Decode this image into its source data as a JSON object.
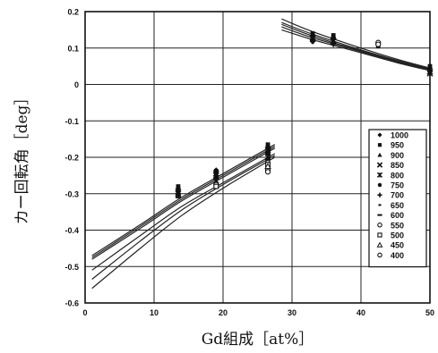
{
  "chart_data": {
    "type": "scatter",
    "xlabel": "Gd組成［at%］",
    "ylabel": "カー回転角［deg］",
    "xlim": [
      0,
      50
    ],
    "ylim": [
      -0.6,
      0.2
    ],
    "xticks": [
      "0",
      "10",
      "20",
      "30",
      "40",
      "50"
    ],
    "yticks": [
      "0.2",
      "0.1",
      "0",
      "-0.1",
      "-0.2",
      "-0.3",
      "-0.4",
      "-0.5",
      "-0.6"
    ],
    "grid": true,
    "legend_position": "right",
    "legend": [
      "1000",
      "950",
      "900",
      "850",
      "800",
      "750",
      "700",
      "650",
      "600",
      "550",
      "500",
      "450",
      "400"
    ],
    "series": [
      {
        "name": "1000",
        "marker": "diamond",
        "points": [
          [
            13.5,
            -0.285
          ],
          [
            19,
            -0.235
          ],
          [
            26.5,
            -0.17
          ],
          [
            33,
            0.135
          ],
          [
            36,
            0.13
          ],
          [
            42.5,
            0.11
          ],
          [
            50,
            0.045
          ]
        ]
      },
      {
        "name": "950",
        "marker": "square-filled",
        "points": [
          [
            13.5,
            -0.28
          ],
          [
            19,
            -0.238
          ],
          [
            26.5,
            -0.165
          ],
          [
            33,
            0.14
          ],
          [
            36,
            0.135
          ],
          [
            42.5,
            0.105
          ],
          [
            50,
            0.05
          ]
        ]
      },
      {
        "name": "900",
        "marker": "triangle",
        "points": [
          [
            13.5,
            -0.29
          ],
          [
            19,
            -0.24
          ],
          [
            26.5,
            -0.175
          ],
          [
            33,
            0.13
          ],
          [
            36,
            0.128
          ],
          [
            50,
            0.04
          ]
        ]
      },
      {
        "name": "850",
        "marker": "x",
        "points": [
          [
            13.5,
            -0.295
          ],
          [
            19,
            -0.245
          ],
          [
            26.5,
            -0.18
          ],
          [
            33,
            0.128
          ],
          [
            36,
            0.12
          ],
          [
            50,
            0.035
          ]
        ]
      },
      {
        "name": "800",
        "marker": "asterisk",
        "points": [
          [
            13.5,
            -0.3
          ],
          [
            19,
            -0.25
          ],
          [
            26.5,
            -0.185
          ],
          [
            33,
            0.125
          ],
          [
            36,
            0.118
          ],
          [
            50,
            0.03
          ]
        ]
      },
      {
        "name": "750",
        "marker": "circle-filled",
        "points": [
          [
            13.5,
            -0.3
          ],
          [
            19,
            -0.255
          ],
          [
            26.5,
            -0.19
          ],
          [
            33,
            0.12
          ],
          [
            36,
            0.115
          ]
        ]
      },
      {
        "name": "700",
        "marker": "plus",
        "points": [
          [
            13.5,
            -0.305
          ],
          [
            19,
            -0.26
          ],
          [
            26.5,
            -0.195
          ],
          [
            33,
            0.118
          ],
          [
            36,
            0.11
          ]
        ]
      },
      {
        "name": "650",
        "marker": "dash-short",
        "points": [
          [
            13.5,
            -0.305
          ],
          [
            19,
            -0.265
          ],
          [
            26.5,
            -0.2
          ],
          [
            33,
            0.115
          ]
        ]
      },
      {
        "name": "600",
        "marker": "dash-long",
        "points": [
          [
            13.5,
            -0.31
          ],
          [
            19,
            -0.27
          ],
          [
            26.5,
            -0.205
          ]
        ]
      },
      {
        "name": "550",
        "marker": "circle-open",
        "points": [
          [
            19,
            -0.275
          ],
          [
            26.5,
            -0.215
          ],
          [
            26.5,
            -0.235
          ],
          [
            42.5,
            0.115
          ]
        ]
      },
      {
        "name": "500",
        "marker": "square-open",
        "points": [
          [
            19,
            -0.28
          ],
          [
            26.5,
            -0.22
          ]
        ]
      },
      {
        "name": "450",
        "marker": "triangle-open",
        "points": [
          [
            26.5,
            -0.225
          ]
        ]
      },
      {
        "name": "400",
        "marker": "circle-open",
        "points": [
          [
            26.5,
            -0.24
          ],
          [
            42.5,
            0.11
          ]
        ]
      }
    ],
    "fit_curves": [
      {
        "segment": "left",
        "x": [
          1,
          8,
          14,
          20,
          27.5
        ],
        "y": [
          -0.47,
          -0.385,
          -0.31,
          -0.245,
          -0.165
        ]
      },
      {
        "segment": "left",
        "x": [
          1,
          8,
          14,
          20,
          27.5
        ],
        "y": [
          -0.475,
          -0.39,
          -0.315,
          -0.25,
          -0.17
        ]
      },
      {
        "segment": "left",
        "x": [
          1,
          8,
          14,
          20,
          27.5
        ],
        "y": [
          -0.48,
          -0.395,
          -0.32,
          -0.255,
          -0.175
        ]
      },
      {
        "segment": "left",
        "x": [
          1,
          8,
          14,
          20,
          27.5
        ],
        "y": [
          -0.51,
          -0.415,
          -0.335,
          -0.27,
          -0.19
        ]
      },
      {
        "segment": "left",
        "x": [
          1,
          8,
          14,
          20,
          27.5
        ],
        "y": [
          -0.535,
          -0.43,
          -0.345,
          -0.275,
          -0.195
        ]
      },
      {
        "segment": "left",
        "x": [
          1,
          8,
          14,
          20,
          27.5
        ],
        "y": [
          -0.56,
          -0.45,
          -0.36,
          -0.285,
          -0.2
        ]
      },
      {
        "segment": "right",
        "x": [
          28.5,
          33,
          40,
          46,
          50
        ],
        "y": [
          0.18,
          0.145,
          0.1,
          0.065,
          0.045
        ]
      },
      {
        "segment": "right",
        "x": [
          28.5,
          33,
          40,
          46,
          50
        ],
        "y": [
          0.17,
          0.138,
          0.095,
          0.062,
          0.043
        ]
      },
      {
        "segment": "right",
        "x": [
          28.5,
          33,
          40,
          46,
          50
        ],
        "y": [
          0.165,
          0.133,
          0.092,
          0.06,
          0.042
        ]
      },
      {
        "segment": "right",
        "x": [
          28.5,
          33,
          40,
          46,
          50
        ],
        "y": [
          0.158,
          0.128,
          0.09,
          0.058,
          0.04
        ]
      },
      {
        "segment": "right",
        "x": [
          28.5,
          33,
          40,
          46,
          50
        ],
        "y": [
          0.15,
          0.123,
          0.087,
          0.056,
          0.038
        ]
      }
    ]
  }
}
